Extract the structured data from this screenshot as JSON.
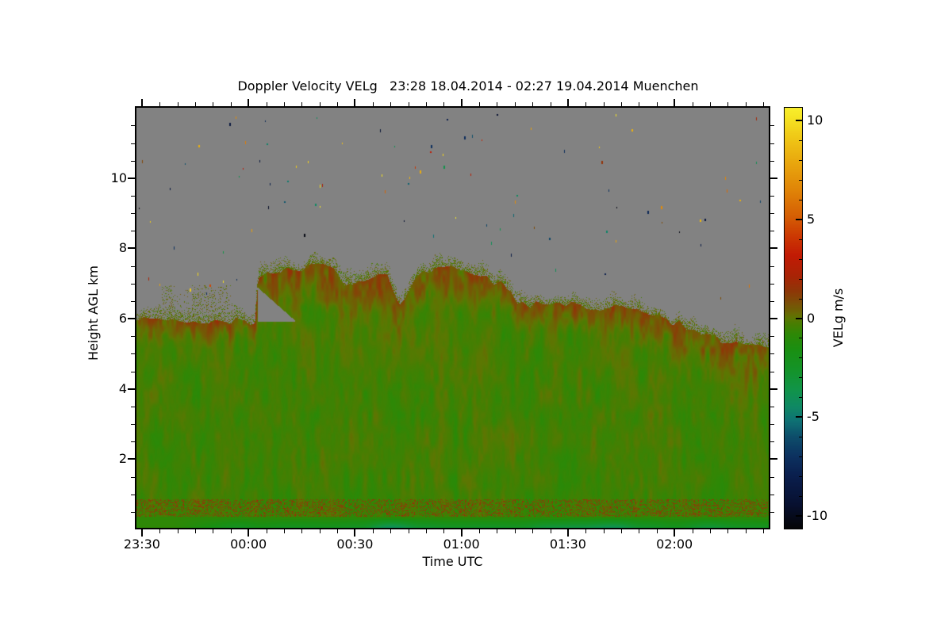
{
  "chart_data": {
    "type": "heatmap",
    "title": "Doppler Velocity VELg   23:28 18.04.2014 - 02:27 19.04.2014 Muenchen",
    "xlabel": "Time UTC",
    "ylabel": "Height AGL km",
    "colorbar_label": "VELg m/s",
    "x_total_min": 179,
    "x_start_time": "23:28",
    "x_end_time": "02:27",
    "x_ticks": [
      [
        "23:30",
        2
      ],
      [
        "00:00",
        32
      ],
      [
        "00:30",
        62
      ],
      [
        "01:00",
        92
      ],
      [
        "01:30",
        122
      ],
      [
        "02:00",
        152
      ]
    ],
    "x_minor_step_min": 5,
    "x_minor_offset_min": 2,
    "ylim": [
      0,
      12.05
    ],
    "y_ticks": [
      [
        "2",
        2
      ],
      [
        "4",
        4
      ],
      [
        "6",
        6
      ],
      [
        "8",
        8
      ],
      [
        "10",
        10
      ]
    ],
    "y_minor_step_km": 0.5,
    "grid": false,
    "legend_position": "right-colorbar",
    "colorbar": {
      "range": [
        -10.7,
        10.7
      ],
      "ticks": [
        [
          "10",
          10
        ],
        [
          "5",
          5
        ],
        [
          "0",
          0
        ],
        [
          "-5",
          -5
        ],
        [
          "-10",
          -10
        ]
      ],
      "minor_step": 1
    },
    "background_color": "#828282",
    "colormap_stops": [
      [
        -10.7,
        "#050507"
      ],
      [
        -9.5,
        "#071030"
      ],
      [
        -8,
        "#0a1f4e"
      ],
      [
        -7,
        "#0c3260"
      ],
      [
        -6,
        "#0d4f6b"
      ],
      [
        -5.2,
        "#0e7374"
      ],
      [
        -4.5,
        "#0f8964"
      ],
      [
        -3.6,
        "#119448"
      ],
      [
        -2.6,
        "#149328"
      ],
      [
        -1.6,
        "#1a8f12"
      ],
      [
        -0.8,
        "#2e8806"
      ],
      [
        -0.3,
        "#477e02"
      ],
      [
        0.0,
        "#5c7702"
      ],
      [
        0.35,
        "#6d6404"
      ],
      [
        0.8,
        "#7c4e07"
      ],
      [
        1.4,
        "#8f3607"
      ],
      [
        2.2,
        "#ab2306"
      ],
      [
        3.2,
        "#c21b04"
      ],
      [
        4.2,
        "#cc3a03"
      ],
      [
        5.2,
        "#d55f04"
      ],
      [
        6.5,
        "#e08407"
      ],
      [
        8,
        "#e9a90e"
      ],
      [
        9.3,
        "#f0ca17"
      ],
      [
        10.2,
        "#f5e423"
      ],
      [
        10.7,
        "#f8ee2c"
      ]
    ],
    "cloud_top_profile": [
      [
        0,
        6.05
      ],
      [
        8,
        6.0
      ],
      [
        20,
        5.95
      ],
      [
        30,
        5.95
      ],
      [
        33.5,
        5.9
      ],
      [
        34.5,
        7.1
      ],
      [
        37,
        7.35
      ],
      [
        44,
        7.45
      ],
      [
        50,
        7.5
      ],
      [
        56,
        7.45
      ],
      [
        58.5,
        7.05
      ],
      [
        61,
        6.9
      ],
      [
        64,
        7.1
      ],
      [
        67,
        7.3
      ],
      [
        71,
        7.25
      ],
      [
        73,
        6.6
      ],
      [
        74.5,
        6.45
      ],
      [
        76.5,
        6.65
      ],
      [
        79,
        7.2
      ],
      [
        83,
        7.4
      ],
      [
        90,
        7.5
      ],
      [
        97,
        7.25
      ],
      [
        102,
        7.05
      ],
      [
        106,
        6.85
      ],
      [
        108,
        6.5
      ],
      [
        112,
        6.42
      ],
      [
        120,
        6.4
      ],
      [
        135,
        6.3
      ],
      [
        142,
        6.25
      ],
      [
        150,
        6.0
      ],
      [
        156,
        5.75
      ],
      [
        162,
        5.5
      ],
      [
        168,
        5.3
      ],
      [
        173,
        5.2
      ],
      [
        179,
        5.15
      ]
    ],
    "band_width_profile": [
      [
        0,
        0.85
      ],
      [
        30,
        0.75
      ],
      [
        36,
        1.5
      ],
      [
        60,
        1.45
      ],
      [
        95,
        1.35
      ],
      [
        108,
        0.85
      ],
      [
        122,
        0.95
      ],
      [
        140,
        1.15
      ],
      [
        155,
        1.3
      ],
      [
        179,
        1.5
      ]
    ],
    "gap": {
      "t": [
        34.2,
        44.8
      ],
      "h_low": 5.92,
      "h_up_start": 6.9,
      "h_up_end": 5.95
    },
    "scatter_layer": {
      "t": [
        7,
        27
      ],
      "h": [
        6.25,
        6.95
      ],
      "density": 0.09
    },
    "bottom_speckle": {
      "h": [
        0.28,
        0.8
      ],
      "p": 0.3,
      "v": [
        0.7,
        1.7
      ]
    },
    "teal_line": {
      "t_start": 10,
      "ramp": 30,
      "h": 0.3,
      "v_bottom": -4.4
    },
    "noise_dots": {
      "count": 95,
      "seed": 42
    }
  }
}
